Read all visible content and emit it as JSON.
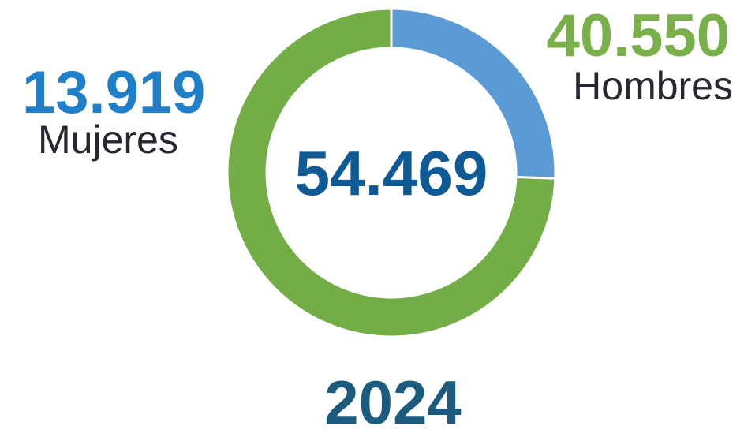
{
  "chart_data": {
    "type": "pie",
    "variant": "donut",
    "year": "2024",
    "total": {
      "value": 54469,
      "label": "54.469"
    },
    "slices": [
      {
        "name": "Mujeres",
        "value": 13919,
        "label": "13.919",
        "color": "#5b9bd5"
      },
      {
        "name": "Hombres",
        "value": 40550,
        "label": "40.550",
        "color": "#72ad45"
      }
    ]
  }
}
